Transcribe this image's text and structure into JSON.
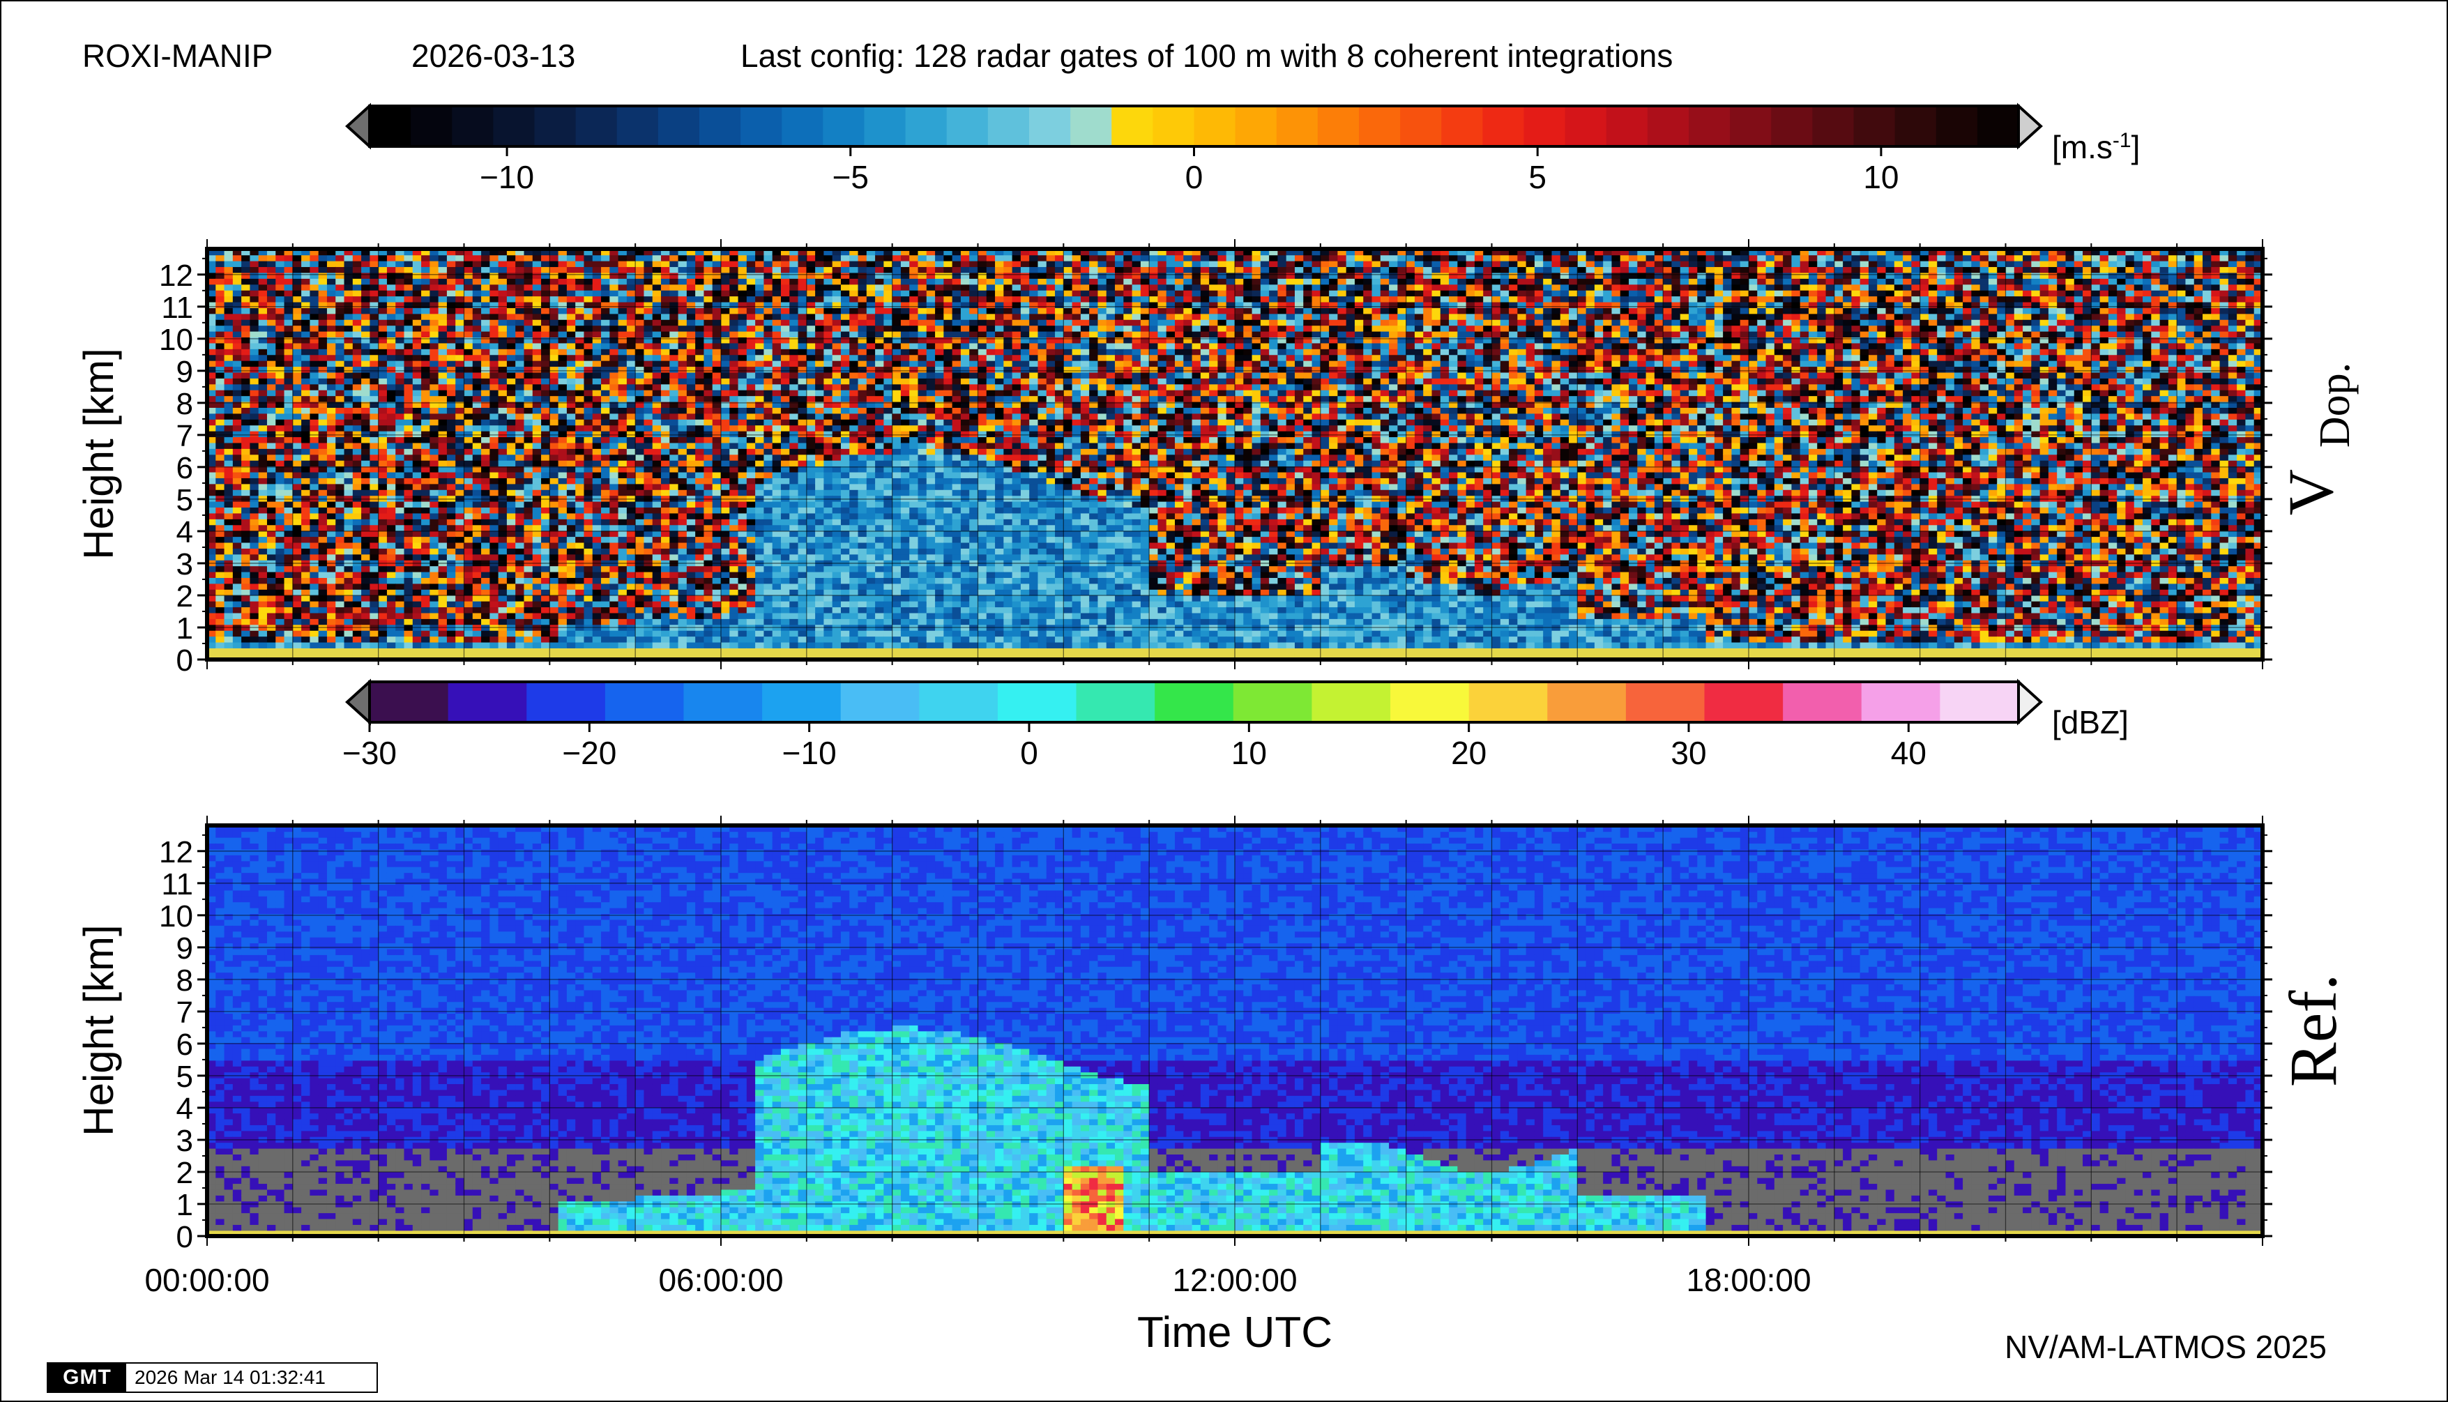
{
  "header": {
    "site": "ROXI-MANIP",
    "date": "2026-03-13",
    "config": "Last config: 128 radar gates of 100 m with 8 coherent integrations"
  },
  "credit": "NV/AM-LATMOS 2025",
  "stamp": {
    "logo": "GMT",
    "timestamp": "2026 Mar 14 01:32:41"
  },
  "xlabel": "Time UTC",
  "xticks": [
    "00:00:00",
    "06:00:00",
    "12:00:00",
    "18:00:00"
  ],
  "chart_data": [
    {
      "type": "heatmap",
      "panel_label": "V",
      "panel_label_sub": "Dop.",
      "ylabel": "Height [km]",
      "ylim": [
        0,
        12.8
      ],
      "yticks": [
        0,
        1,
        2,
        3,
        4,
        5,
        6,
        7,
        8,
        9,
        10,
        11,
        12
      ],
      "xlim_hours": [
        0,
        24
      ],
      "xticks_hours": [
        0,
        6,
        12,
        18
      ],
      "grid": true,
      "colorbar": {
        "unit": "[m.s",
        "unit_sup": "-1",
        "unit_end": "]",
        "range": [
          -12,
          12
        ],
        "ticks": [
          -10,
          -5,
          0,
          5,
          10
        ],
        "tick_labels": [
          "−10",
          "−5",
          "0",
          "5",
          "10"
        ],
        "colors": [
          "#000000",
          "#04050e",
          "#060c1e",
          "#08142f",
          "#0a1d42",
          "#0b2756",
          "#0b336c",
          "#0a4082",
          "#0a4f98",
          "#0b5fac",
          "#0d6fba",
          "#1380c4",
          "#1e92cc",
          "#2ea3d3",
          "#44b3d9",
          "#5fc1dc",
          "#7dcfdf",
          "#9fdccd",
          "#fdd70c",
          "#fec907",
          "#feb905",
          "#fea705",
          "#fd9306",
          "#fc7e08",
          "#fa680b",
          "#f7520e",
          "#f43c11",
          "#ee2914",
          "#e41c17",
          "#d51519",
          "#c2111a",
          "#ad0f1a",
          "#970e19",
          "#810d17",
          "#6b0c14",
          "#560b11",
          "#410a0d",
          "#2d0809",
          "#1a0505",
          "#0a0202"
        ]
      },
      "series_description_values": {
        "near_surface_band_km": [
          0,
          0.5
        ],
        "cloud_top_max_km": 6.8,
        "precip_core_hours": [
          10.0,
          10.6
        ],
        "min_doppler_ms": -10
      }
    },
    {
      "type": "heatmap",
      "panel_label": "Ref.",
      "ylabel": "Height [km]",
      "ylim": [
        0,
        12.8
      ],
      "yticks": [
        0,
        1,
        2,
        3,
        4,
        5,
        6,
        7,
        8,
        9,
        10,
        11,
        12
      ],
      "xlim_hours": [
        0,
        24
      ],
      "xticks_hours": [
        0,
        6,
        12,
        18
      ],
      "grid": true,
      "colorbar": {
        "unit": "[dBZ]",
        "range": [
          -30,
          45
        ],
        "ticks": [
          -30,
          -20,
          -10,
          0,
          10,
          20,
          30,
          40
        ],
        "tick_labels": [
          "−30",
          "−20",
          "−10",
          "0",
          "10",
          "20",
          "30",
          "40"
        ],
        "colors": [
          "#3b0f4f",
          "#3610b8",
          "#1e3be8",
          "#1664ee",
          "#1886ee",
          "#1ca2f0",
          "#49bdf5",
          "#3fd3ef",
          "#35f0f1",
          "#35e8b0",
          "#34e64a",
          "#7ee834",
          "#c4f232",
          "#f8f83a",
          "#fbd23a",
          "#f99d3a",
          "#f7643b",
          "#f02c42",
          "#f25fad",
          "#f5a0e8",
          "#f7d4f5"
        ]
      },
      "series_description_values": {
        "max_reflectivity_dbz": 30,
        "cloud_top_max_km": 6.7,
        "precip_core_hours": [
          10.0,
          10.6
        ]
      }
    }
  ],
  "colors": {
    "no_echo_gray": "#6b6b6b",
    "surface_band": "#e5d84a"
  }
}
